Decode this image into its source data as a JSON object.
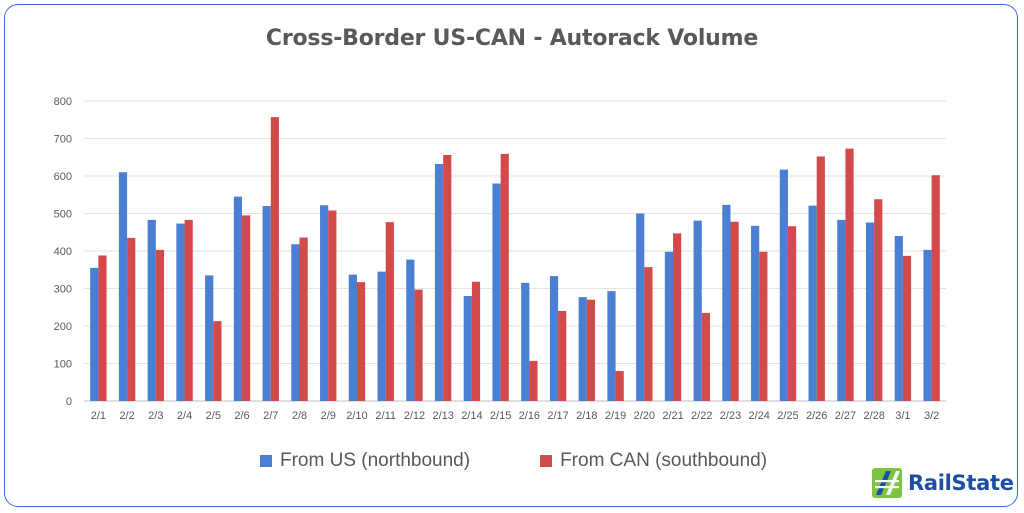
{
  "chart_data": {
    "type": "bar",
    "title": "Cross-Border US-CAN - Autorack Volume",
    "categories": [
      "2/1",
      "2/2",
      "2/3",
      "2/4",
      "2/5",
      "2/6",
      "2/7",
      "2/8",
      "2/9",
      "2/10",
      "2/11",
      "2/12",
      "2/13",
      "2/14",
      "2/15",
      "2/16",
      "2/17",
      "2/18",
      "2/19",
      "2/20",
      "2/21",
      "2/22",
      "2/23",
      "2/24",
      "2/25",
      "2/26",
      "2/27",
      "2/28",
      "3/1",
      "3/2"
    ],
    "series": [
      {
        "name": "From US (northbound)",
        "color": "#4a7fd4",
        "values": [
          355,
          610,
          483,
          473,
          335,
          545,
          520,
          418,
          522,
          337,
          345,
          377,
          632,
          280,
          580,
          315,
          333,
          277,
          293,
          500,
          398,
          481,
          523,
          467,
          617,
          521,
          483,
          476,
          440,
          403
        ]
      },
      {
        "name": "From CAN (southbound)",
        "color": "#d24a4a",
        "values": [
          388,
          435,
          403,
          483,
          213,
          495,
          757,
          436,
          508,
          317,
          477,
          297,
          656,
          318,
          659,
          107,
          240,
          270,
          80,
          357,
          447,
          235,
          478,
          398,
          466,
          652,
          673,
          538,
          387,
          602
        ]
      }
    ],
    "ylim": [
      0,
      800
    ],
    "yticks": [
      0,
      100,
      200,
      300,
      400,
      500,
      600,
      700,
      800
    ],
    "grid": true,
    "legend_position": "bottom"
  },
  "logo": {
    "text": "RailState"
  }
}
